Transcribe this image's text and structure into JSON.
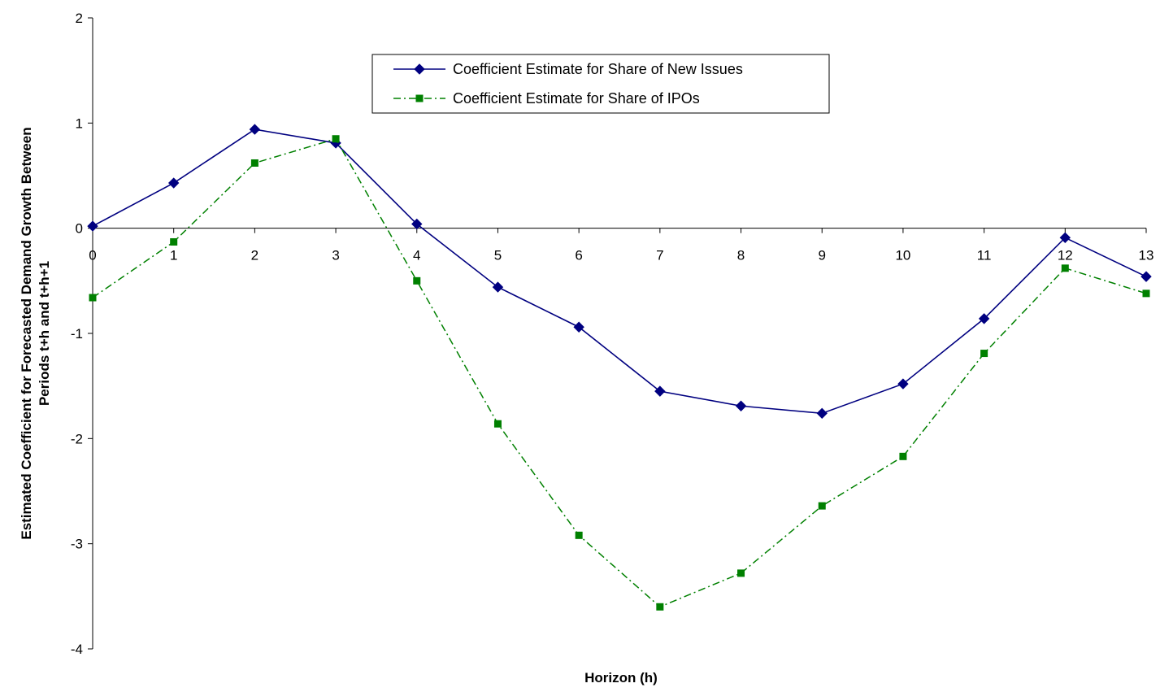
{
  "chart_data": {
    "type": "line",
    "title": "",
    "xlabel": "Horizon (h)",
    "ylabel_line1": "Estimated Coefficient for Forecasted Demand Growth Between",
    "ylabel_line2": "Periods t+h and t+h+1",
    "x": [
      0,
      1,
      2,
      3,
      4,
      5,
      6,
      7,
      8,
      9,
      10,
      11,
      12,
      13
    ],
    "xlim": [
      0,
      13
    ],
    "ylim": [
      -4,
      2
    ],
    "yticks": [
      2,
      1,
      0,
      -1,
      -2,
      -3,
      -4
    ],
    "grid": false,
    "legend_position": "top-center",
    "series": [
      {
        "name": "Coefficient Estimate for Share of New Issues",
        "color": "#000080",
        "marker": "diamond",
        "line_style": "solid",
        "values": [
          0.02,
          0.43,
          0.94,
          0.81,
          0.04,
          -0.56,
          -0.94,
          -1.55,
          -1.69,
          -1.76,
          -1.48,
          -0.86,
          -0.09,
          -0.46
        ]
      },
      {
        "name": "Coefficient Estimate for Share of IPOs",
        "color": "#008000",
        "marker": "square",
        "line_style": "dash-dot",
        "values": [
          -0.66,
          -0.13,
          0.62,
          0.85,
          -0.5,
          -1.86,
          -2.92,
          -3.6,
          -3.28,
          -2.64,
          -2.17,
          -1.19,
          -0.38,
          -0.62
        ]
      }
    ]
  }
}
